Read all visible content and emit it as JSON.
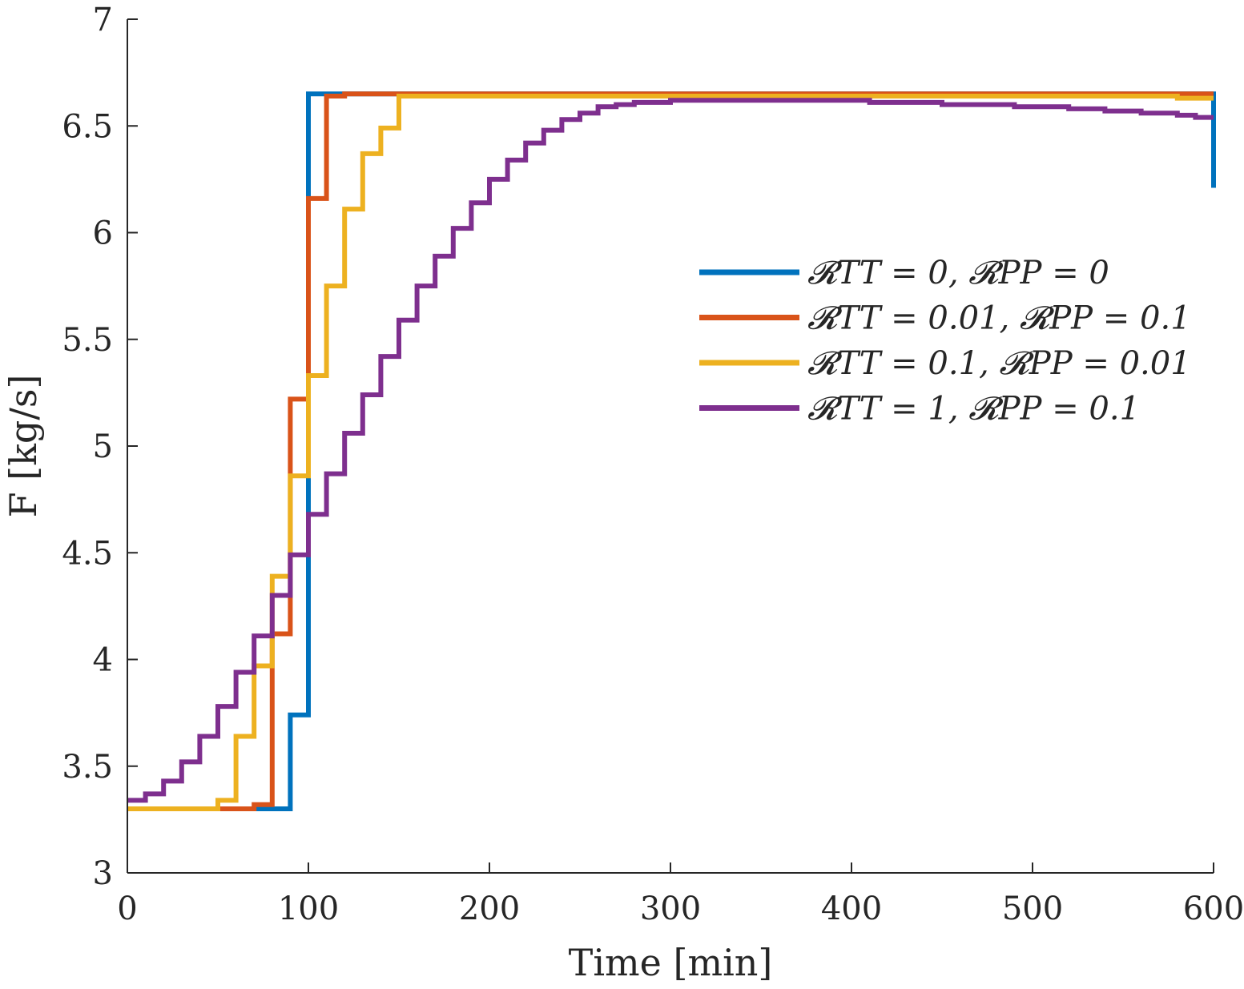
{
  "chart_data": {
    "type": "line",
    "title": "",
    "xlabel": "Time [min]",
    "ylabel": "F [kg/s]",
    "xlim": [
      0,
      600
    ],
    "ylim": [
      3,
      7
    ],
    "xticks": [
      0,
      100,
      200,
      300,
      400,
      500,
      600
    ],
    "yticks": [
      3,
      3.5,
      4,
      4.5,
      5,
      5.5,
      6,
      6.5,
      7
    ],
    "grid": false,
    "legend_position": "right-center",
    "step": "post",
    "x": [
      0,
      10,
      20,
      30,
      40,
      50,
      60,
      70,
      80,
      90,
      100,
      110,
      120,
      130,
      140,
      150,
      160,
      170,
      180,
      190,
      200,
      210,
      220,
      230,
      240,
      250,
      260,
      270,
      280,
      290,
      300,
      310,
      320,
      330,
      340,
      350,
      360,
      370,
      380,
      390,
      400,
      410,
      420,
      430,
      440,
      450,
      460,
      470,
      480,
      490,
      500,
      510,
      520,
      530,
      540,
      550,
      560,
      570,
      580,
      590,
      600
    ],
    "series": [
      {
        "name": "RTT = 0, RPP = 0",
        "legend_label": "𝓡TT = 0, 𝓡PP = 0",
        "color": "#0072BD",
        "values": [
          3.3,
          3.3,
          3.3,
          3.3,
          3.3,
          3.3,
          3.3,
          3.3,
          3.3,
          3.74,
          6.65,
          6.65,
          6.65,
          6.65,
          6.65,
          6.65,
          6.65,
          6.65,
          6.65,
          6.65,
          6.65,
          6.65,
          6.65,
          6.65,
          6.65,
          6.65,
          6.65,
          6.65,
          6.65,
          6.65,
          6.65,
          6.65,
          6.65,
          6.65,
          6.65,
          6.65,
          6.65,
          6.65,
          6.65,
          6.65,
          6.65,
          6.65,
          6.65,
          6.65,
          6.65,
          6.65,
          6.65,
          6.65,
          6.65,
          6.65,
          6.65,
          6.65,
          6.65,
          6.65,
          6.65,
          6.65,
          6.65,
          6.65,
          6.65,
          6.65,
          6.21
        ]
      },
      {
        "name": "RTT = 0.01, RPP = 0.1",
        "legend_label": "𝓡TT = 0.01, 𝓡PP = 0.1",
        "color": "#D95319",
        "values": [
          3.3,
          3.3,
          3.3,
          3.3,
          3.3,
          3.3,
          3.3,
          3.32,
          4.12,
          5.22,
          6.16,
          6.64,
          6.65,
          6.65,
          6.65,
          6.65,
          6.65,
          6.65,
          6.65,
          6.65,
          6.65,
          6.65,
          6.65,
          6.65,
          6.65,
          6.65,
          6.65,
          6.65,
          6.65,
          6.65,
          6.65,
          6.65,
          6.65,
          6.65,
          6.65,
          6.65,
          6.65,
          6.65,
          6.65,
          6.65,
          6.65,
          6.65,
          6.65,
          6.65,
          6.65,
          6.65,
          6.65,
          6.65,
          6.65,
          6.65,
          6.65,
          6.65,
          6.65,
          6.65,
          6.65,
          6.65,
          6.65,
          6.65,
          6.65,
          6.65,
          6.65
        ]
      },
      {
        "name": "RTT = 0.1, RPP = 0.01",
        "legend_label": "𝓡TT = 0.1, 𝓡PP = 0.01",
        "color": "#EDB120",
        "values": [
          3.3,
          3.3,
          3.3,
          3.3,
          3.3,
          3.34,
          3.64,
          3.97,
          4.39,
          4.86,
          5.33,
          5.75,
          6.11,
          6.37,
          6.49,
          6.64,
          6.64,
          6.64,
          6.64,
          6.64,
          6.64,
          6.64,
          6.64,
          6.64,
          6.64,
          6.64,
          6.64,
          6.64,
          6.64,
          6.64,
          6.64,
          6.64,
          6.64,
          6.64,
          6.64,
          6.64,
          6.64,
          6.64,
          6.64,
          6.64,
          6.64,
          6.64,
          6.64,
          6.64,
          6.64,
          6.64,
          6.64,
          6.64,
          6.64,
          6.64,
          6.64,
          6.64,
          6.64,
          6.64,
          6.64,
          6.64,
          6.64,
          6.64,
          6.63,
          6.63,
          6.63
        ]
      },
      {
        "name": "RTT = 1, RPP = 0.1",
        "legend_label": "𝓡TT = 1, 𝓡PP = 0.1",
        "color": "#7E2F8E",
        "values": [
          3.34,
          3.37,
          3.43,
          3.52,
          3.64,
          3.78,
          3.94,
          4.11,
          4.3,
          4.49,
          4.68,
          4.87,
          5.06,
          5.24,
          5.42,
          5.59,
          5.75,
          5.89,
          6.02,
          6.14,
          6.25,
          6.34,
          6.42,
          6.48,
          6.53,
          6.56,
          6.59,
          6.6,
          6.61,
          6.61,
          6.62,
          6.62,
          6.62,
          6.62,
          6.62,
          6.62,
          6.62,
          6.62,
          6.62,
          6.62,
          6.62,
          6.61,
          6.61,
          6.61,
          6.61,
          6.6,
          6.6,
          6.6,
          6.6,
          6.59,
          6.59,
          6.59,
          6.58,
          6.58,
          6.57,
          6.57,
          6.56,
          6.56,
          6.55,
          6.54,
          6.54
        ]
      }
    ]
  }
}
